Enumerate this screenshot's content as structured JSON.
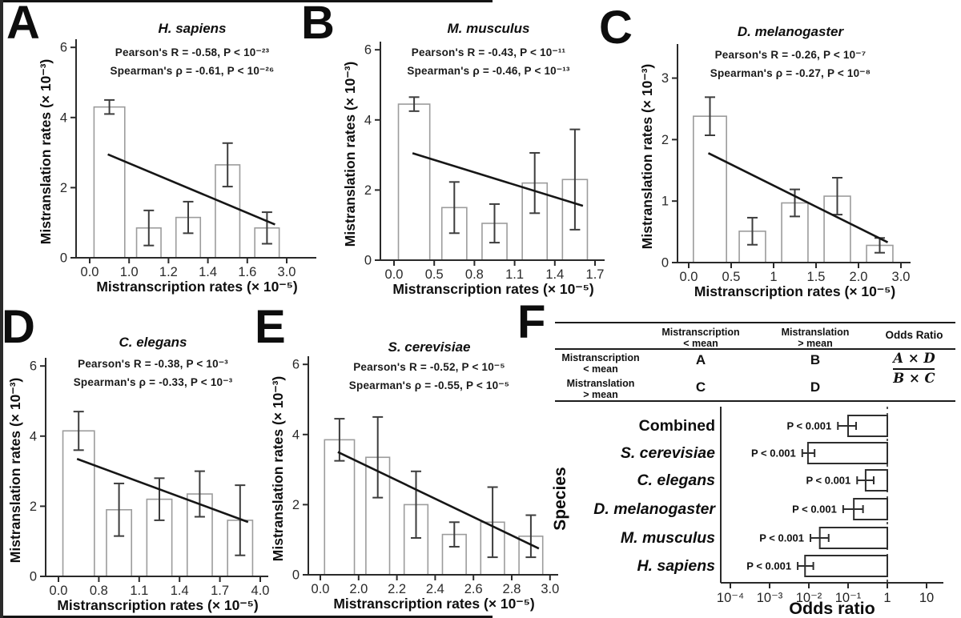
{
  "panel_letters": [
    "A",
    "B",
    "C",
    "D",
    "E",
    "F"
  ],
  "panel_f_table": {
    "col_headers": [
      [
        "Mistranscription",
        "< mean"
      ],
      [
        "Mistranslation",
        "> mean"
      ],
      [
        "Odds Ratio",
        ""
      ]
    ],
    "row_headers": [
      [
        "Mistranscription",
        "< mean"
      ],
      [
        "Mistranslation",
        "> mean"
      ]
    ],
    "cells": [
      [
        "A",
        "B"
      ],
      [
        "C",
        "D"
      ]
    ],
    "formula_numerator": "A × D",
    "formula_denominator": "B × C"
  },
  "chart_data": [
    {
      "type": "bar",
      "panel": "A",
      "title": "H. sapiens",
      "pearson": "Pearson's R = -0.58,  P < 10⁻²³",
      "spearman": "Spearman's ρ = -0.61,  P < 10⁻²⁶",
      "xlabel": "Mistranscription rates (× 10⁻⁵)",
      "ylabel": "Mistranslation rates (× 10⁻³)",
      "xticklabels": [
        "0.0",
        "1.0",
        "1.2",
        "1.4",
        "1.6",
        "3.0"
      ],
      "yticks": [
        0,
        2,
        4,
        6
      ],
      "ylim": [
        0,
        6.05
      ],
      "values": [
        4.3,
        0.85,
        1.15,
        2.65,
        0.85
      ],
      "errors": [
        0.2,
        0.5,
        0.45,
        0.62,
        0.45
      ],
      "trendline": {
        "y_start": 2.95,
        "y_end": 0.95
      }
    },
    {
      "type": "bar",
      "panel": "B",
      "title": "M. musculus",
      "pearson": "Pearson's R = -0.43,  P < 10⁻¹¹",
      "spearman": "Spearman's ρ = -0.46,  P < 10⁻¹³",
      "xlabel": "Mistranscription rates (× 10⁻⁵)",
      "ylabel": "Mistranslation rates (× 10⁻³)",
      "xticklabels": [
        "0.0",
        "0.5",
        "0.8",
        "1.1",
        "1.4",
        "1.7"
      ],
      "yticks": [
        0,
        2,
        4,
        6
      ],
      "ylim": [
        0,
        6.05
      ],
      "values": [
        4.45,
        1.5,
        1.05,
        2.2,
        2.3
      ],
      "errors": [
        0.2,
        0.73,
        0.55,
        0.86,
        1.43
      ],
      "trendline": {
        "y_start": 3.05,
        "y_end": 1.55
      }
    },
    {
      "type": "bar",
      "panel": "C",
      "title": "D. melanogaster",
      "pearson": "Pearson's R = -0.26,  P < 10⁻⁷",
      "spearman": "Spearman's ρ = -0.27,  P < 10⁻⁸",
      "xlabel": "Mistranscription rates (× 10⁻⁵)",
      "ylabel": "Mistranslation rates (× 10⁻³)",
      "xticklabels": [
        "0.0",
        "0.5",
        "1",
        "1.5",
        "2.0",
        "3.0"
      ],
      "yticks": [
        0,
        1,
        2,
        3
      ],
      "ylim": [
        0,
        3.45
      ],
      "values": [
        2.38,
        0.51,
        0.97,
        1.08,
        0.28
      ],
      "errors": [
        0.31,
        0.22,
        0.22,
        0.3,
        0.12
      ],
      "trendline": {
        "y_start": 1.78,
        "y_end": 0.33
      }
    },
    {
      "type": "bar",
      "panel": "D",
      "title": "C. elegans",
      "pearson": "Pearson's R = -0.38,  P < 10⁻³",
      "spearman": "Spearman's ρ = -0.33,  P < 10⁻³",
      "xlabel": "Mistranscription rates (× 10⁻⁵)",
      "ylabel": "Mistranslation rates (× 10⁻³)",
      "xticklabels": [
        "0.0",
        "0.8",
        "1.1",
        "1.4",
        "1.7",
        "4.0"
      ],
      "yticks": [
        0,
        2,
        4,
        6
      ],
      "ylim": [
        0,
        6.05
      ],
      "values": [
        4.15,
        1.9,
        2.2,
        2.35,
        1.6
      ],
      "errors": [
        0.55,
        0.75,
        0.6,
        0.65,
        1.0
      ],
      "trendline": {
        "y_start": 3.35,
        "y_end": 1.55
      }
    },
    {
      "type": "bar",
      "panel": "E",
      "title": "S. cerevisiae",
      "pearson": "Pearson's R = -0.52,  P < 10⁻⁵",
      "spearman": "Spearman's ρ = -0.55,  P < 10⁻⁵",
      "xlabel": "Mistranscription rates (× 10⁻⁵)",
      "ylabel": "Mistranslation rates (× 10⁻³)",
      "xticklabels": [
        "0.0",
        "2.0",
        "2.2",
        "2.4",
        "2.6",
        "2.8",
        "3.0"
      ],
      "yticks": [
        0,
        2,
        4,
        6
      ],
      "ylim": [
        0,
        6.05
      ],
      "values": [
        3.85,
        3.35,
        2.0,
        1.15,
        1.5,
        1.1
      ],
      "errors": [
        0.6,
        1.15,
        0.95,
        0.35,
        1.0,
        0.6
      ],
      "trendline": {
        "y_start": 3.5,
        "y_end": 0.75
      }
    },
    {
      "type": "bar-horizontal-log",
      "panel": "F",
      "ylabel": "Species",
      "xlabel": "Odds ratio",
      "xticklabels": [
        "10⁻⁴",
        "10⁻³",
        "10⁻²",
        "10⁻¹",
        "1",
        "10"
      ],
      "xtick_values": [
        0.0001,
        0.001,
        0.01,
        0.1,
        1,
        10
      ],
      "reference_line": 1,
      "rows": [
        {
          "label": "Combined",
          "italic": false,
          "p_label": "P < 0.001",
          "odds_ratio": 0.1,
          "ci": [
            0.055,
            0.16
          ]
        },
        {
          "label": "S. cerevisiae",
          "italic": true,
          "p_label": "P < 0.001",
          "odds_ratio": 0.0095,
          "ci": [
            0.0068,
            0.014
          ]
        },
        {
          "label": "C. elegans",
          "italic": true,
          "p_label": "P < 0.001",
          "odds_ratio": 0.28,
          "ci": [
            0.17,
            0.45
          ]
        },
        {
          "label": "D. melanogaster",
          "italic": true,
          "p_label": "P < 0.001",
          "odds_ratio": 0.14,
          "ci": [
            0.075,
            0.24
          ]
        },
        {
          "label": "M. musculus",
          "italic": true,
          "p_label": "P < 0.001",
          "odds_ratio": 0.019,
          "ci": [
            0.011,
            0.032
          ]
        },
        {
          "label": "H. sapiens",
          "italic": true,
          "p_label": "P < 0.001",
          "odds_ratio": 0.008,
          "ci": [
            0.0052,
            0.013
          ]
        }
      ]
    }
  ]
}
